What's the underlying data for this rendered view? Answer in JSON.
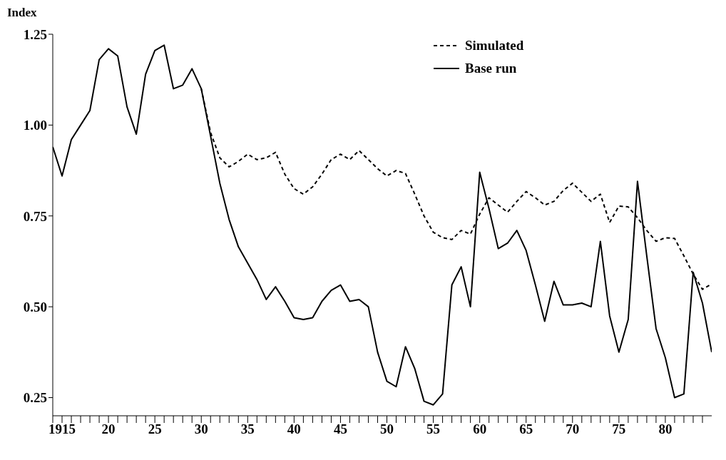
{
  "chart_data": {
    "type": "line",
    "ylabel": "Index",
    "legend": "top right",
    "grid": false,
    "marker": "none",
    "x": [
      1914,
      1915,
      1916,
      1917,
      1918,
      1919,
      1920,
      1921,
      1922,
      1923,
      1924,
      1925,
      1926,
      1927,
      1928,
      1929,
      1930,
      1931,
      1932,
      1933,
      1934,
      1935,
      1936,
      1937,
      1938,
      1939,
      1940,
      1941,
      1942,
      1943,
      1944,
      1945,
      1946,
      1947,
      1948,
      1949,
      1950,
      1951,
      1952,
      1953,
      1954,
      1955,
      1956,
      1957,
      1958,
      1959,
      1960,
      1961,
      1962,
      1963,
      1964,
      1965,
      1966,
      1967,
      1968,
      1969,
      1970,
      1971,
      1972,
      1973,
      1974,
      1975,
      1976,
      1977,
      1978,
      1979,
      1980,
      1981,
      1982,
      1983,
      1984,
      1985
    ],
    "series": [
      {
        "name": "Simulated",
        "color": "#000000",
        "line_style": "dashed",
        "values": [
          null,
          null,
          null,
          null,
          null,
          null,
          null,
          null,
          null,
          null,
          null,
          null,
          null,
          null,
          null,
          null,
          1.1,
          0.98,
          0.91,
          0.885,
          0.9,
          0.92,
          0.905,
          0.91,
          0.925,
          0.865,
          0.825,
          0.81,
          0.83,
          0.865,
          0.905,
          0.92,
          0.905,
          0.93,
          0.905,
          0.88,
          0.86,
          0.875,
          0.867,
          0.81,
          0.75,
          0.705,
          0.69,
          0.685,
          0.71,
          0.7,
          0.755,
          0.8,
          0.78,
          0.76,
          0.79,
          0.817,
          0.8,
          0.78,
          0.79,
          0.82,
          0.84,
          0.815,
          0.79,
          0.81,
          0.732,
          0.777,
          0.775,
          0.745,
          0.71,
          0.68,
          0.69,
          0.688,
          0.64,
          0.59,
          0.548,
          0.563
        ]
      },
      {
        "name": "Base run",
        "color": "#000000",
        "line_style": "solid",
        "values": [
          0.94,
          0.86,
          0.96,
          1.0,
          1.04,
          1.18,
          1.21,
          1.19,
          1.05,
          0.975,
          1.14,
          1.205,
          1.22,
          1.1,
          1.11,
          1.155,
          1.1,
          0.97,
          0.84,
          0.74,
          0.665,
          0.62,
          0.575,
          0.52,
          0.555,
          0.515,
          0.47,
          0.465,
          0.47,
          0.515,
          0.545,
          0.56,
          0.515,
          0.52,
          0.5,
          0.375,
          0.295,
          0.28,
          0.39,
          0.33,
          0.24,
          0.23,
          0.26,
          0.56,
          0.61,
          0.5,
          0.87,
          0.77,
          0.66,
          0.675,
          0.71,
          0.655,
          0.56,
          0.46,
          0.57,
          0.505,
          0.505,
          0.51,
          0.5,
          0.68,
          0.475,
          0.375,
          0.465,
          0.845,
          0.64,
          0.44,
          0.36,
          0.25,
          0.26,
          0.595,
          0.51,
          0.375
        ]
      }
    ],
    "xlim": [
      1914,
      1985
    ],
    "xticks": [
      {
        "value": 1914,
        "label": null
      },
      {
        "value": 1915,
        "label": "1915"
      },
      {
        "value": 1916,
        "label": null
      },
      {
        "value": 1917,
        "label": null
      },
      {
        "value": 1918,
        "label": null
      },
      {
        "value": 1919,
        "label": null
      },
      {
        "value": 1920,
        "label": "20"
      },
      {
        "value": 1921,
        "label": null
      },
      {
        "value": 1922,
        "label": null
      },
      {
        "value": 1923,
        "label": null
      },
      {
        "value": 1924,
        "label": null
      },
      {
        "value": 1925,
        "label": "25"
      },
      {
        "value": 1926,
        "label": null
      },
      {
        "value": 1927,
        "label": null
      },
      {
        "value": 1928,
        "label": null
      },
      {
        "value": 1929,
        "label": null
      },
      {
        "value": 1930,
        "label": "30"
      },
      {
        "value": 1931,
        "label": null
      },
      {
        "value": 1932,
        "label": null
      },
      {
        "value": 1933,
        "label": null
      },
      {
        "value": 1934,
        "label": null
      },
      {
        "value": 1935,
        "label": "35"
      },
      {
        "value": 1936,
        "label": null
      },
      {
        "value": 1937,
        "label": null
      },
      {
        "value": 1938,
        "label": null
      },
      {
        "value": 1939,
        "label": null
      },
      {
        "value": 1940,
        "label": "40"
      },
      {
        "value": 1941,
        "label": null
      },
      {
        "value": 1942,
        "label": null
      },
      {
        "value": 1943,
        "label": null
      },
      {
        "value": 1944,
        "label": null
      },
      {
        "value": 1945,
        "label": "45"
      },
      {
        "value": 1946,
        "label": null
      },
      {
        "value": 1947,
        "label": null
      },
      {
        "value": 1948,
        "label": null
      },
      {
        "value": 1949,
        "label": null
      },
      {
        "value": 1950,
        "label": "50"
      },
      {
        "value": 1951,
        "label": null
      },
      {
        "value": 1952,
        "label": null
      },
      {
        "value": 1953,
        "label": null
      },
      {
        "value": 1954,
        "label": null
      },
      {
        "value": 1955,
        "label": "55"
      },
      {
        "value": 1956,
        "label": null
      },
      {
        "value": 1957,
        "label": null
      },
      {
        "value": 1958,
        "label": null
      },
      {
        "value": 1959,
        "label": null
      },
      {
        "value": 1960,
        "label": "60"
      },
      {
        "value": 1961,
        "label": null
      },
      {
        "value": 1962,
        "label": null
      },
      {
        "value": 1963,
        "label": null
      },
      {
        "value": 1964,
        "label": null
      },
      {
        "value": 1965,
        "label": "65"
      },
      {
        "value": 1966,
        "label": null
      },
      {
        "value": 1967,
        "label": null
      },
      {
        "value": 1968,
        "label": null
      },
      {
        "value": 1969,
        "label": null
      },
      {
        "value": 1970,
        "label": "70"
      },
      {
        "value": 1971,
        "label": null
      },
      {
        "value": 1972,
        "label": null
      },
      {
        "value": 1973,
        "label": null
      },
      {
        "value": 1974,
        "label": null
      },
      {
        "value": 1975,
        "label": "75"
      },
      {
        "value": 1976,
        "label": null
      },
      {
        "value": 1977,
        "label": null
      },
      {
        "value": 1978,
        "label": null
      },
      {
        "value": 1979,
        "label": null
      },
      {
        "value": 1980,
        "label": "80"
      },
      {
        "value": 1981,
        "label": null
      },
      {
        "value": 1982,
        "label": null
      },
      {
        "value": 1983,
        "label": null
      },
      {
        "value": 1984,
        "label": null
      }
    ],
    "ylim": [
      0.2,
      1.25
    ],
    "yticks": [
      {
        "value": 0.25,
        "label": "0.25"
      },
      {
        "value": 0.5,
        "label": "0.50"
      },
      {
        "value": 0.75,
        "label": "0.75"
      },
      {
        "value": 1.0,
        "label": "1.00"
      },
      {
        "value": 1.25,
        "label": "1.25"
      }
    ]
  }
}
